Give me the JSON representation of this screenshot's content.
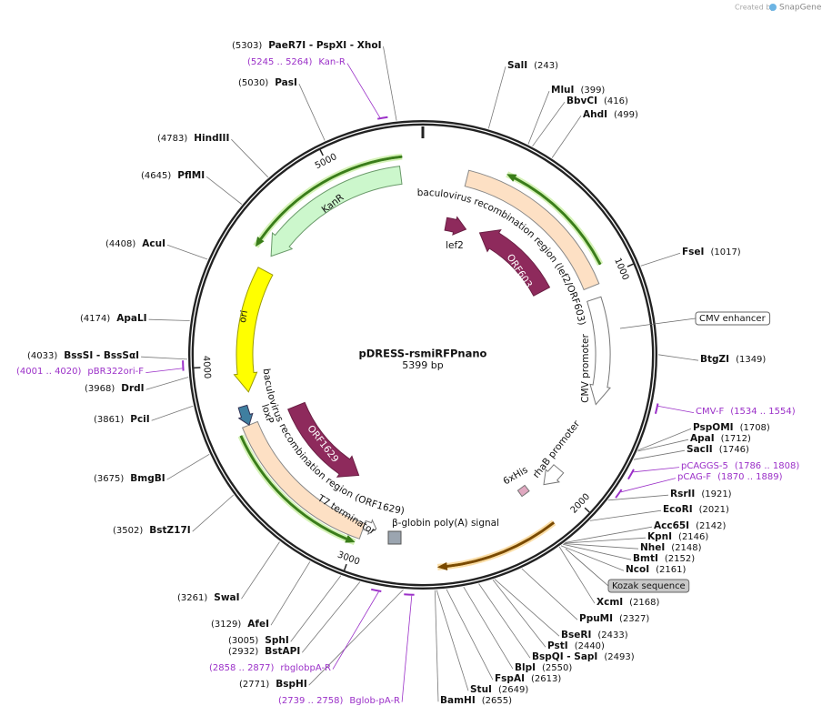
{
  "header": {
    "credit_prefix": "Created by",
    "credit_brand": "SnapGene"
  },
  "map": {
    "name": "pDRESS-rsmiRFPnano",
    "length": "5399 bp",
    "ticks": [
      "1000",
      "2000",
      "3000",
      "4000",
      "5000"
    ]
  },
  "sites": [
    {
      "name": "SalI",
      "position": "(243)"
    },
    {
      "name": "MluI",
      "position": "(399)"
    },
    {
      "name": "BbvCI",
      "position": "(416)"
    },
    {
      "name": "AhdI",
      "position": "(499)"
    },
    {
      "name": "FseI",
      "position": "(1017)"
    },
    {
      "name": "BtgZI",
      "position": "(1349)"
    },
    {
      "name": "PspOMI",
      "position": "(1708)"
    },
    {
      "name": "ApaI",
      "position": "(1712)"
    },
    {
      "name": "SacII",
      "position": "(1746)"
    },
    {
      "name": "RsrII",
      "position": "(1921)"
    },
    {
      "name": "EcoRI",
      "position": "(2021)"
    },
    {
      "name": "Acc65I",
      "position": "(2142)"
    },
    {
      "name": "KpnI",
      "position": "(2146)"
    },
    {
      "name": "NheI",
      "position": "(2148)"
    },
    {
      "name": "BmtI",
      "position": "(2152)"
    },
    {
      "name": "NcoI",
      "position": "(2161)"
    },
    {
      "name": "XcmI",
      "position": "(2168)"
    },
    {
      "name": "PpuMI",
      "position": "(2327)"
    },
    {
      "name": "BseRI",
      "position": "(2433)"
    },
    {
      "name": "PstI",
      "position": "(2440)"
    },
    {
      "name": "BspQI  - SapI",
      "position": "(2493)"
    },
    {
      "name": "BlpI",
      "position": "(2550)"
    },
    {
      "name": "FspAI",
      "position": "(2613)"
    },
    {
      "name": "StuI",
      "position": "(2649)"
    },
    {
      "name": "BamHI",
      "position": "(2655)"
    },
    {
      "name": "BspHI",
      "position": "(2771)"
    },
    {
      "name": "BstAPI",
      "position": "(2932)"
    },
    {
      "name": "SphI",
      "position": "(3005)"
    },
    {
      "name": "AfeI",
      "position": "(3129)"
    },
    {
      "name": "SwaI",
      "position": "(3261)"
    },
    {
      "name": "BstZ17I",
      "position": "(3502)"
    },
    {
      "name": "BmgBI",
      "position": "(3675)"
    },
    {
      "name": "PciI",
      "position": "(3861)"
    },
    {
      "name": "DrdI",
      "position": "(3968)"
    },
    {
      "name": "BssSI  - BssSαI",
      "position": "(4033)"
    },
    {
      "name": "ApaLI",
      "position": "(4174)"
    },
    {
      "name": "AcuI",
      "position": "(4408)"
    },
    {
      "name": "PflMI",
      "position": "(4645)"
    },
    {
      "name": "HindIII",
      "position": "(4783)"
    },
    {
      "name": "PasI",
      "position": "(5030)"
    },
    {
      "name": "PaeR7I  - PspXI  - XhoI",
      "position": "(5303)"
    }
  ],
  "primers": [
    {
      "name": "CMV-F",
      "range": "(1534 .. 1554)"
    },
    {
      "name": "pCAGGS-5",
      "range": "(1786 .. 1808)"
    },
    {
      "name": "pCAG-F",
      "range": "(1870 .. 1889)"
    },
    {
      "name": "Bglob-pA-R",
      "range": "(2739 .. 2758)"
    },
    {
      "name": "rbglobpA-R",
      "range": "(2858 .. 2877)"
    },
    {
      "name": "pBR322ori-F",
      "range": "(4001 .. 4020)"
    },
    {
      "name": "Kan-R",
      "range": "(5245 .. 5264)"
    }
  ],
  "callouts": [
    {
      "label": "CMV enhancer"
    },
    {
      "label": "Kozak sequence"
    }
  ],
  "features": [
    {
      "label": "KanR"
    },
    {
      "label": "ori"
    },
    {
      "label": "baculovirus recombination region (lef2/ORF603)"
    },
    {
      "label": "lef2"
    },
    {
      "label": "ORF603"
    },
    {
      "label": "CMV promoter"
    },
    {
      "label": "rhaB promoter"
    },
    {
      "label": "6xHis"
    },
    {
      "label": "β-globin poly(A) signal"
    },
    {
      "label": "T7 terminator"
    },
    {
      "label": "loxP"
    },
    {
      "label": "baculovirus recombination region (ORF1629)"
    },
    {
      "label": "ORF1629"
    }
  ]
}
